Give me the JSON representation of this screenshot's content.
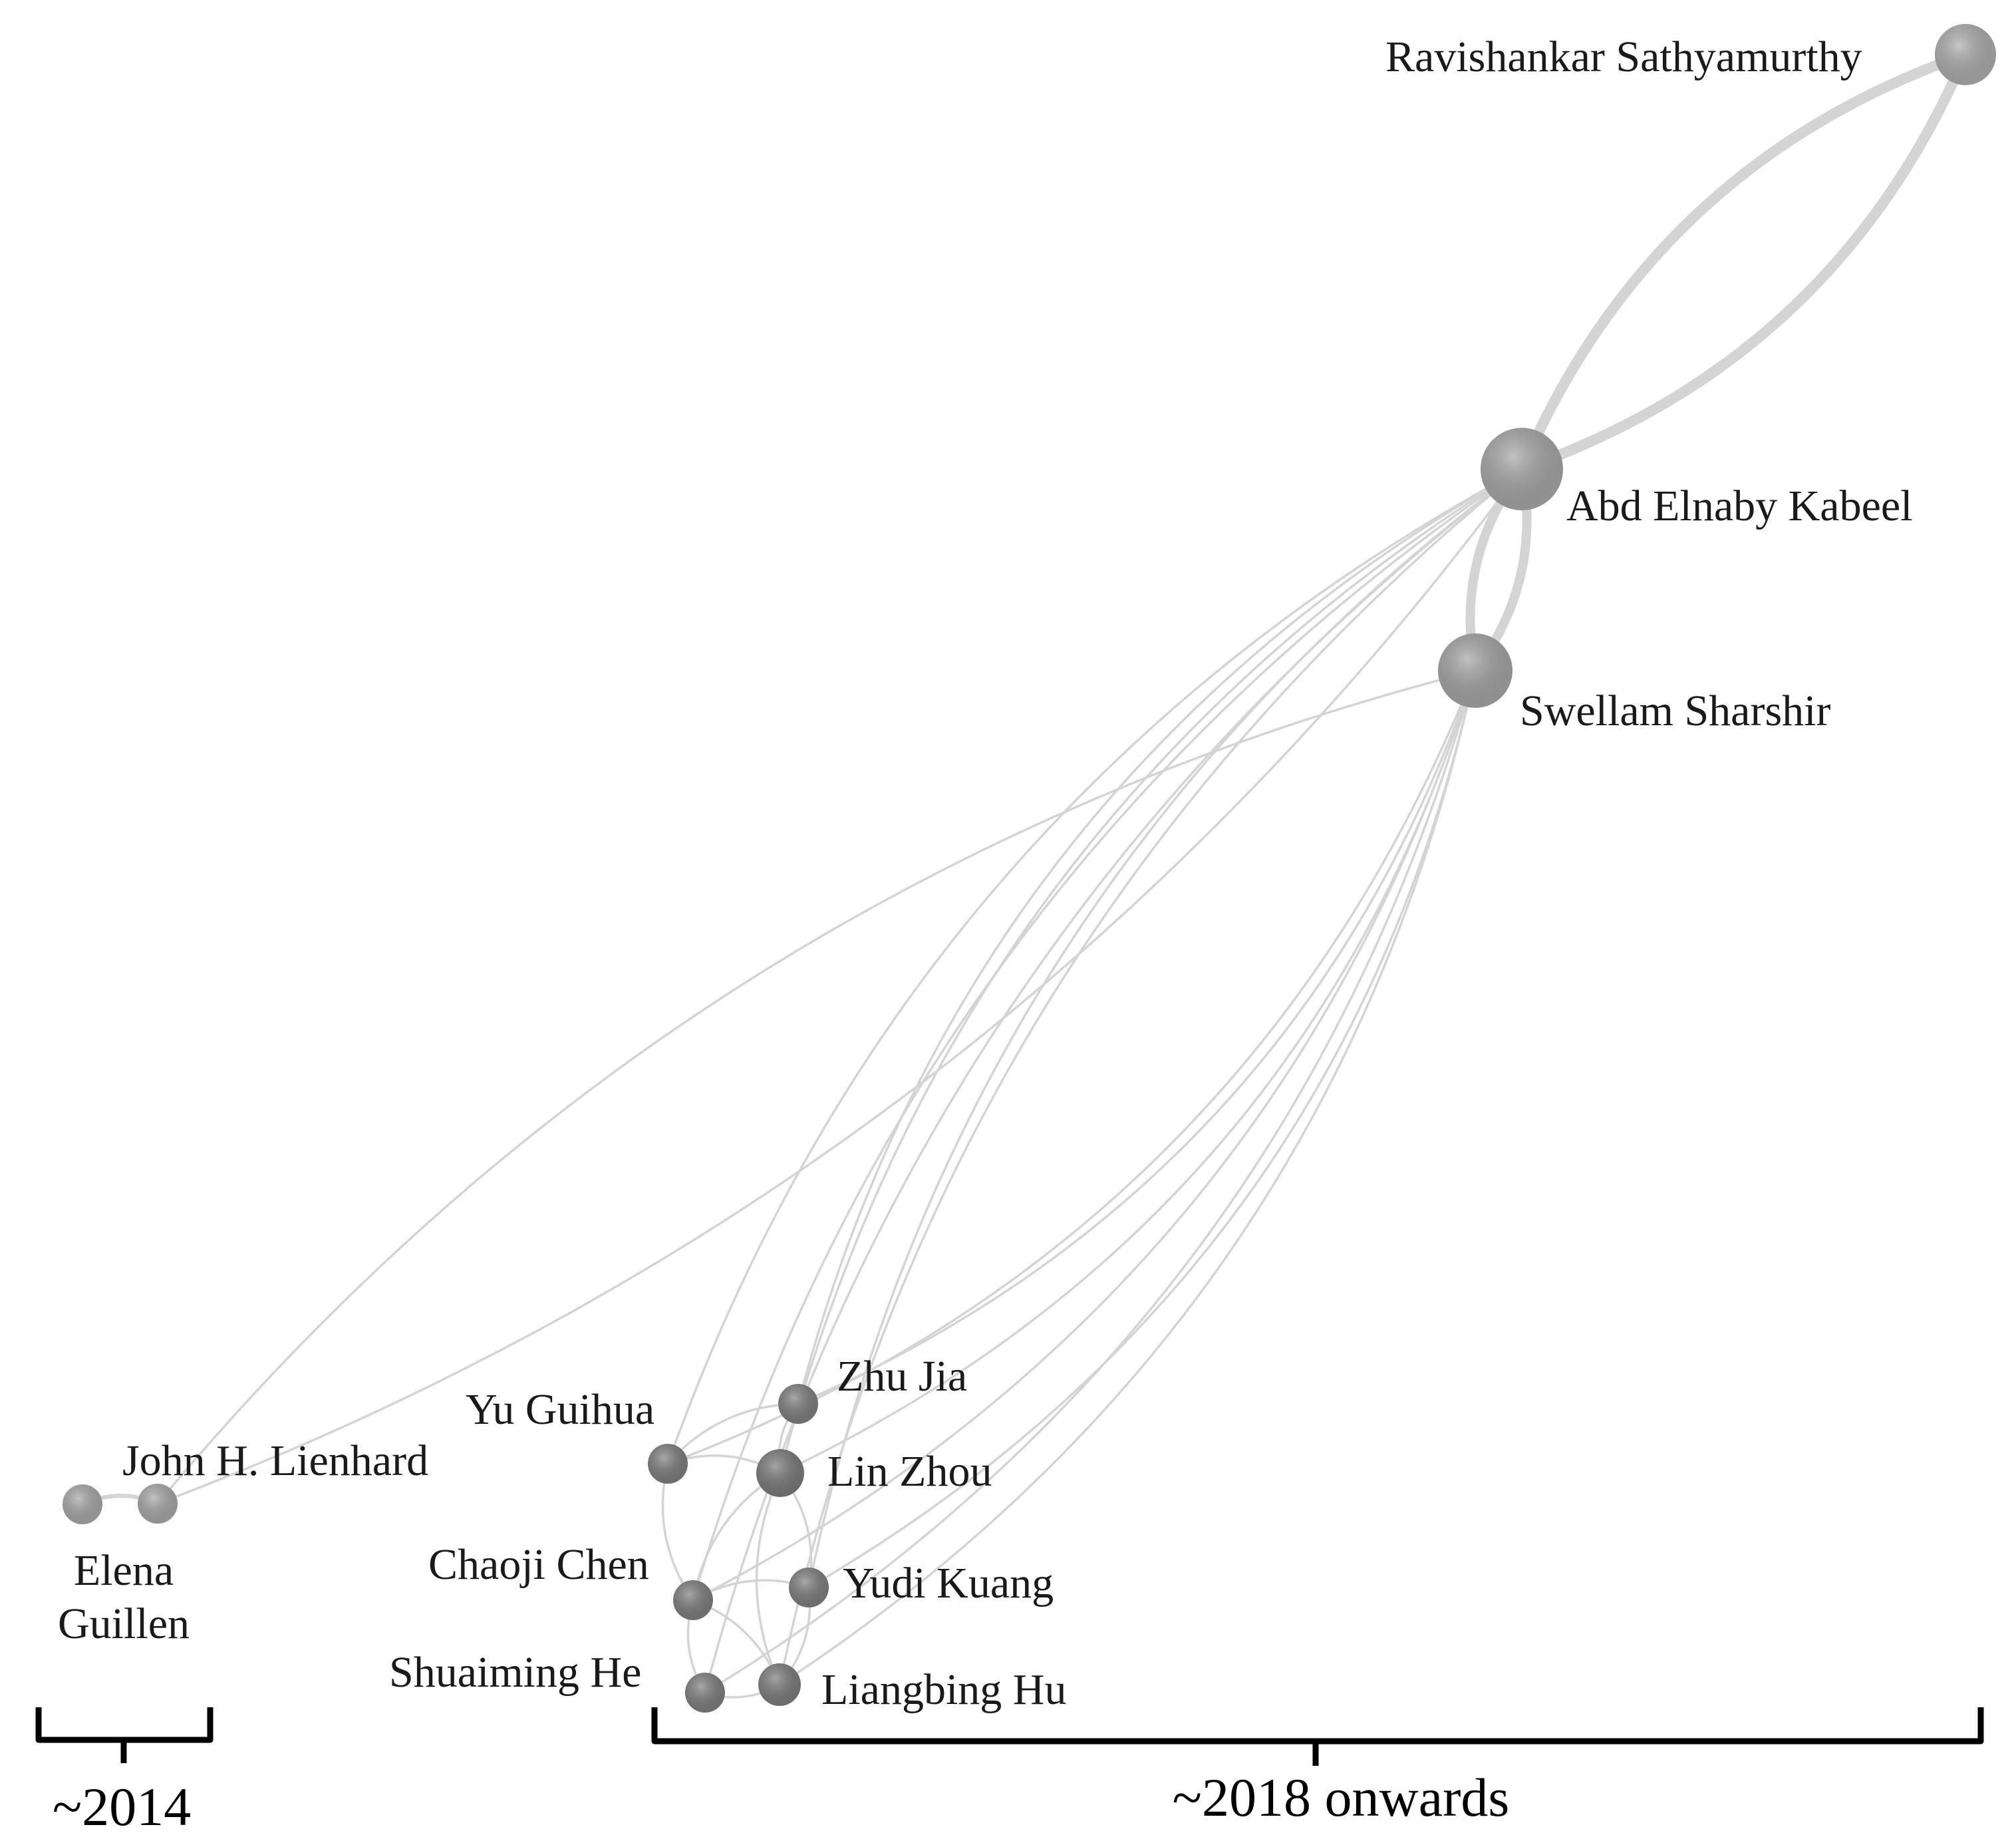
{
  "nodes": [
    {
      "id": "ravishankar",
      "label": "Ravishankar Sathyamurthy",
      "color": "#a8a8a8"
    },
    {
      "id": "kabeel",
      "label": "Abd Elnaby Kabeel",
      "color": "#a2a2a2"
    },
    {
      "id": "sharshir",
      "label": "Swellam Sharshir",
      "color": "#a0a0a0"
    },
    {
      "id": "lienhard",
      "label": "John H. Lienhard",
      "color": "#a3a3a3"
    },
    {
      "id": "guillen",
      "label_line1": "Elena",
      "label_line2": "Guillen",
      "color": "#a3a3a3"
    },
    {
      "id": "yuguihua",
      "label": "Yu Guihua",
      "color": "#7a7a7a"
    },
    {
      "id": "zhujia",
      "label": "Zhu Jia",
      "color": "#7a7a7a"
    },
    {
      "id": "linzhou",
      "label": "Lin Zhou",
      "color": "#767676"
    },
    {
      "id": "chaoji",
      "label": "Chaoji Chen",
      "color": "#7a7a7a"
    },
    {
      "id": "yudi",
      "label": "Yudi Kuang",
      "color": "#7a7a7a"
    },
    {
      "id": "shuaiming",
      "label": "Shuaiming He",
      "color": "#7a7a7a"
    },
    {
      "id": "liangbing",
      "label": "Liangbing Hu",
      "color": "#787878"
    }
  ],
  "edges": [
    [
      "kabeel",
      "ravishankar"
    ],
    [
      "sharshir",
      "kabeel"
    ],
    [
      "lienhard",
      "guillen"
    ],
    [
      "lienhard",
      "sharshir"
    ],
    [
      "lienhard",
      "kabeel"
    ],
    [
      "yuguihua",
      "kabeel"
    ],
    [
      "yuguihua",
      "sharshir"
    ],
    [
      "zhujia",
      "kabeel"
    ],
    [
      "zhujia",
      "sharshir"
    ],
    [
      "linzhou",
      "kabeel"
    ],
    [
      "linzhou",
      "sharshir"
    ],
    [
      "chaoji",
      "kabeel"
    ],
    [
      "chaoji",
      "sharshir"
    ],
    [
      "yudi",
      "kabeel"
    ],
    [
      "yudi",
      "sharshir"
    ],
    [
      "shuaiming",
      "kabeel"
    ],
    [
      "shuaiming",
      "sharshir"
    ],
    [
      "liangbing",
      "kabeel"
    ],
    [
      "liangbing",
      "sharshir"
    ],
    [
      "yuguihua",
      "linzhou"
    ],
    [
      "yuguihua",
      "chaoji"
    ],
    [
      "yuguihua",
      "zhujia"
    ],
    [
      "linzhou",
      "chaoji"
    ],
    [
      "linzhou",
      "yudi"
    ],
    [
      "linzhou",
      "liangbing"
    ],
    [
      "chaoji",
      "yudi"
    ],
    [
      "chaoji",
      "shuaiming"
    ],
    [
      "chaoji",
      "liangbing"
    ],
    [
      "shuaiming",
      "liangbing"
    ],
    [
      "yudi",
      "liangbing"
    ],
    [
      "zhujia",
      "linzhou"
    ]
  ],
  "groups": [
    {
      "id": "early",
      "label": "~2014"
    },
    {
      "id": "late",
      "label": "~2018 onwards"
    }
  ],
  "edge_color": "#d4d4d4"
}
